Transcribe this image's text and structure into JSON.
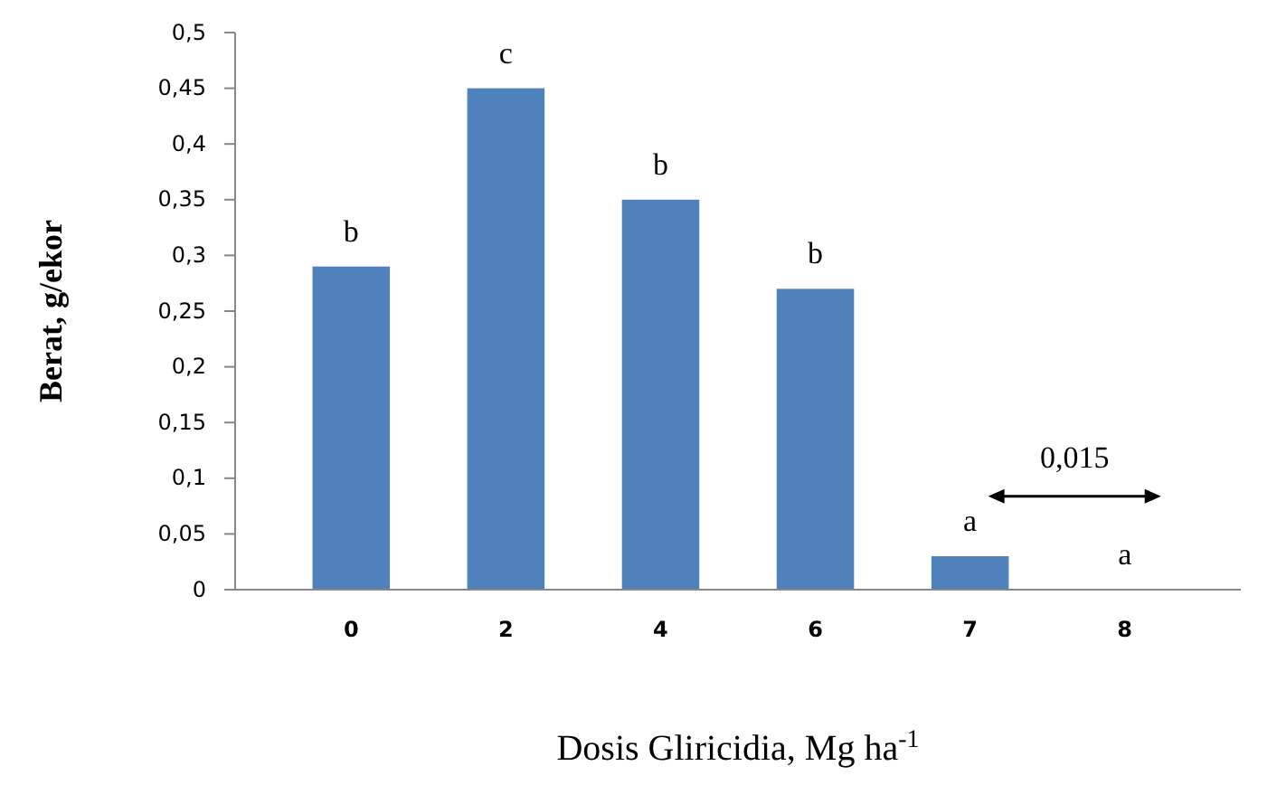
{
  "chart_data": {
    "type": "bar",
    "xlabel": "Dosis Gliricidia, Mg ha$^{-1}$",
    "ylabel": "Berat, g/ekor",
    "categories": [
      "0",
      "2",
      "4",
      "6",
      "7",
      "8"
    ],
    "values": [
      0.29,
      0.45,
      0.35,
      0.27,
      0.03,
      0
    ],
    "color": "#4f81bd",
    "ylim": [
      0,
      0.5
    ],
    "yticks": [
      0,
      {
        "value": 0.05,
        "label": "0,05"
      },
      {
        "value": 0.1,
        "label": "0,1"
      },
      {
        "value": 0.15,
        "label": "0,15"
      },
      {
        "value": 0.2,
        "label": "0,2"
      },
      {
        "value": 0.25,
        "label": "0,25"
      },
      {
        "value": 0.3,
        "label": "0,3"
      },
      {
        "value": 0.35,
        "label": "0,35"
      },
      {
        "value": 0.4,
        "label": "0,4"
      },
      {
        "value": 0.45,
        "label": "0,45"
      },
      {
        "value": 0.5,
        "label": "0,5"
      }
    ],
    "grid": false,
    "annotations": [
      {
        "text": "b",
        "x": "0",
        "y": 0.29
      },
      {
        "text": "c",
        "x": "2",
        "y": 0.45
      },
      {
        "text": "b",
        "x": "4",
        "y": 0.35
      },
      {
        "text": "b",
        "x": "6",
        "y": 0.27
      },
      {
        "text": "a",
        "x": "7",
        "y": 0.03
      },
      {
        "text": "a",
        "x": "8",
        "y": 0
      },
      "0,015"
    ]
  }
}
